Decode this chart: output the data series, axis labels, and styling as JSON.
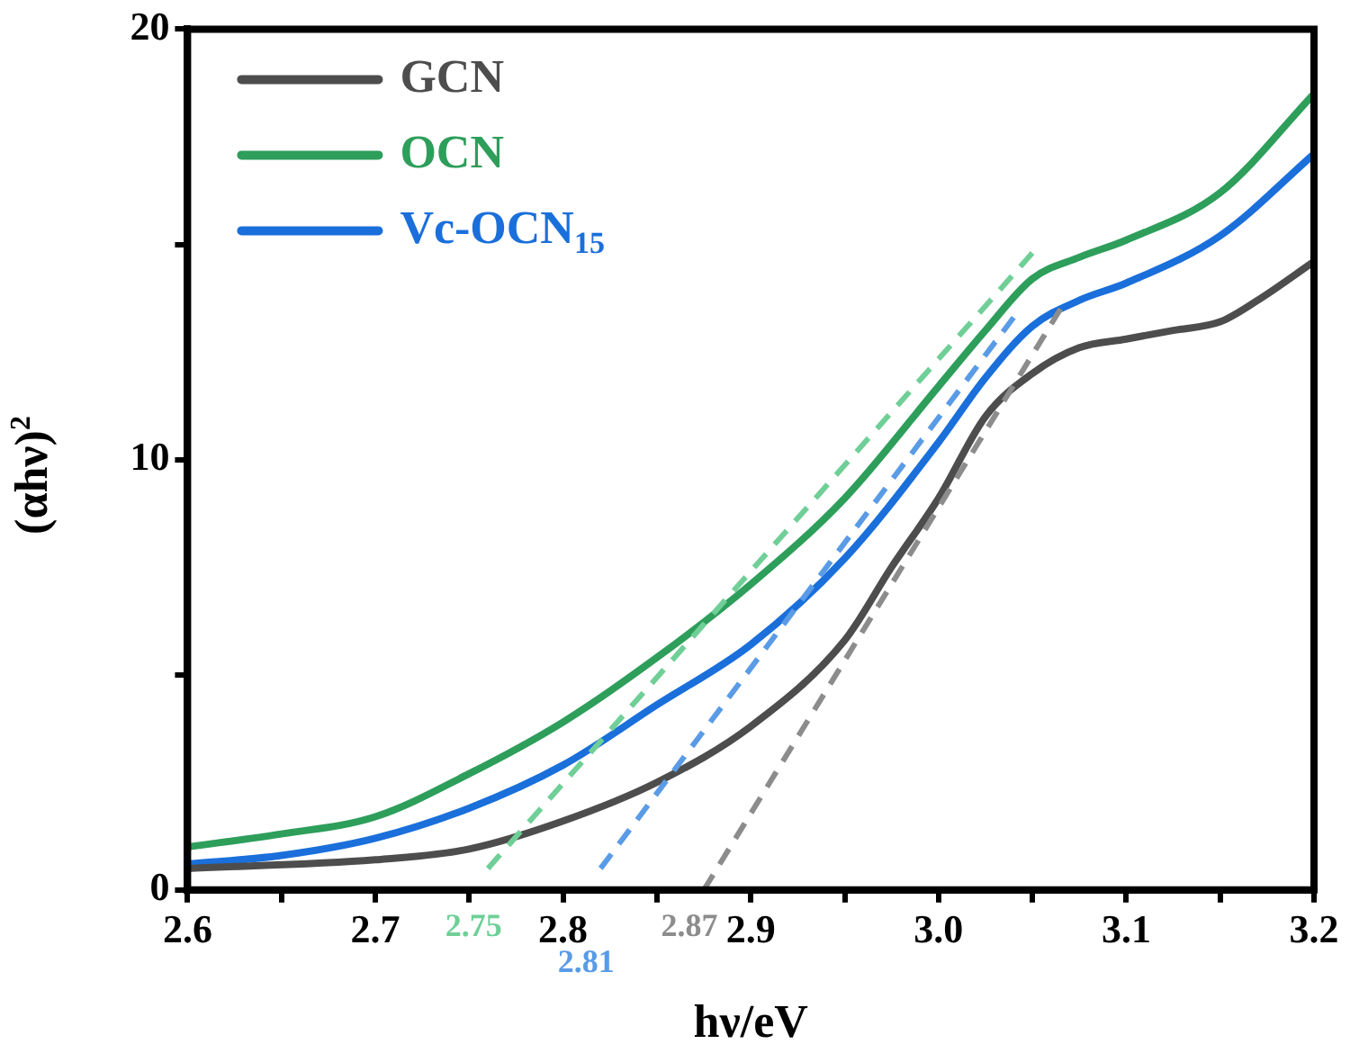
{
  "chart_data": {
    "type": "line",
    "xlabel": "hν/eV",
    "ylabel": "(αhν)$^{2}$",
    "xlim": [
      2.6,
      3.2
    ],
    "ylim": [
      0,
      20
    ],
    "xticks": [
      2.6,
      {
        "value": 2.65,
        "label": null
      },
      2.7,
      {
        "value": 2.75,
        "label": null
      },
      2.8,
      {
        "value": 2.85,
        "label": null
      },
      2.9,
      {
        "value": 2.95,
        "label": null
      },
      {
        "value": 3,
        "label": "3.0"
      },
      {
        "value": 3.05,
        "label": null
      },
      3.1,
      {
        "value": 3.15,
        "label": null
      },
      3.2
    ],
    "yticks": [
      0,
      {
        "value": 5,
        "label": null
      },
      10,
      {
        "value": 15,
        "label": null
      },
      20
    ],
    "grid": false,
    "legend": "top left",
    "line_style": "solid",
    "marker": "none",
    "series": [
      {
        "name": "GCN",
        "color": "#4d4d4d",
        "x": [
          2.6,
          2.7,
          2.75,
          2.8,
          2.85,
          2.9,
          2.95,
          2.975,
          3.0,
          3.025,
          3.05,
          3.075,
          3.1,
          3.125,
          3.15,
          3.17,
          3.2
        ],
        "values": [
          0.5,
          0.7,
          0.95,
          1.6,
          2.5,
          3.8,
          5.8,
          7.5,
          9.1,
          11,
          12,
          12.6,
          12.8,
          13,
          13.2,
          13.7,
          14.6
        ]
      },
      {
        "name": "OCN",
        "color": "#2e9e5b",
        "x": [
          2.6,
          2.65,
          2.7,
          2.75,
          2.8,
          2.85,
          2.9,
          2.95,
          3.0,
          3.025,
          3.05,
          3.075,
          3.1,
          3.15,
          3.2
        ],
        "values": [
          1.0,
          1.3,
          1.7,
          2.7,
          3.9,
          5.4,
          7.1,
          9.1,
          11.7,
          13,
          14.2,
          14.7,
          15.1,
          16.2,
          18.5
        ]
      },
      {
        "name": "Vc-OCN$_{15}$",
        "color": "#1a6fdb",
        "x": [
          2.6,
          2.65,
          2.7,
          2.75,
          2.8,
          2.85,
          2.9,
          2.95,
          3.0,
          3.025,
          3.05,
          3.075,
          3.1,
          3.15,
          3.2
        ],
        "values": [
          0.6,
          0.8,
          1.2,
          1.9,
          2.9,
          4.3,
          5.7,
          7.7,
          10.4,
          11.9,
          13.1,
          13.7,
          14.1,
          15.2,
          17.1
        ]
      },
      {
        "type": "line",
        "color": "#6fcf97",
        "line_style": "dashed",
        "x": [
          2.76,
          3.05
        ],
        "values": [
          0.5,
          14.8
        ]
      },
      {
        "type": "line",
        "color": "#5a9be6",
        "line_style": "dashed",
        "x": [
          2.82,
          3.04
        ],
        "values": [
          0.5,
          13.3
        ]
      },
      {
        "type": "line",
        "color": "#8c8c8c",
        "line_style": "dashed",
        "x": [
          2.875,
          3.065
        ],
        "values": [
          0,
          13.5
        ]
      }
    ],
    "annotations": [
      "2.75",
      "2.81",
      "2.87"
    ]
  }
}
